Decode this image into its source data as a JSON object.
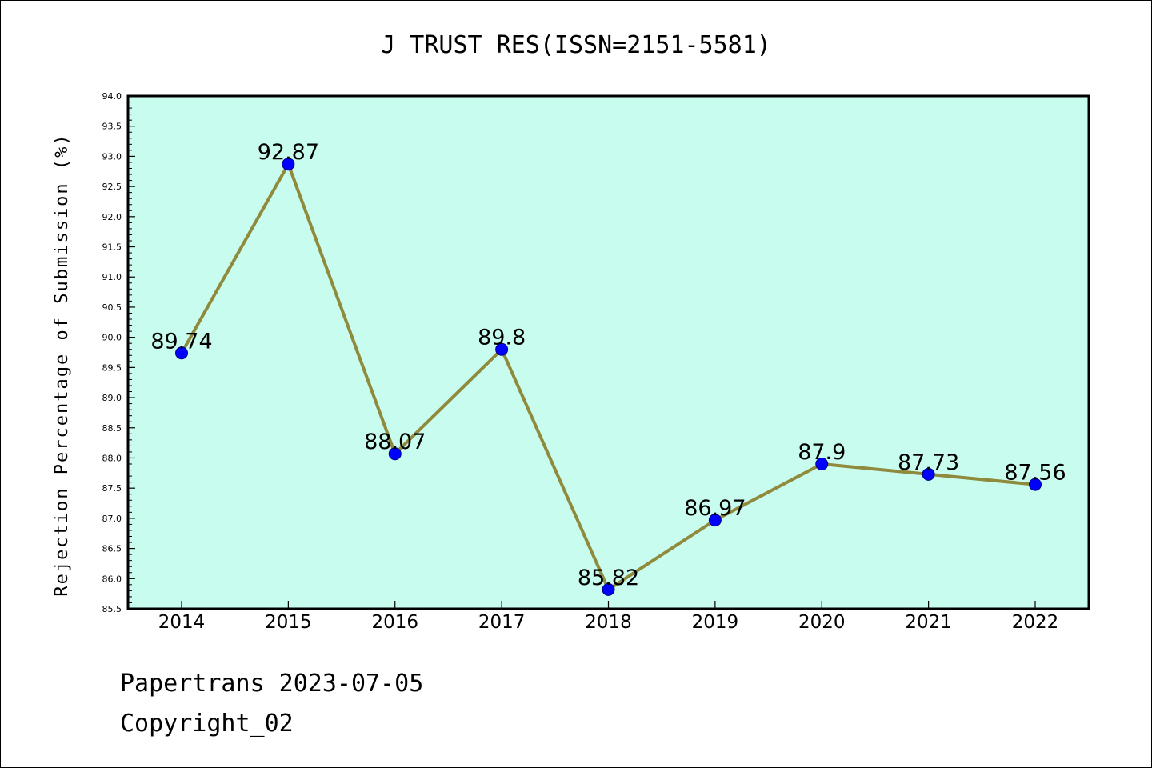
{
  "chart_data": {
    "type": "line",
    "title": "J TRUST RES(ISSN=2151-5581)",
    "xlabel": "",
    "ylabel": "Rejection Percentage of Submission (%)",
    "categories": [
      "2014",
      "2015",
      "2016",
      "2017",
      "2018",
      "2019",
      "2020",
      "2021",
      "2022"
    ],
    "values": [
      89.74,
      92.87,
      88.07,
      89.8,
      85.82,
      86.97,
      87.9,
      87.73,
      87.56
    ],
    "data_labels": [
      "89.74",
      "92.87",
      "88.07",
      "89.8",
      "85.82",
      "86.97",
      "87.9",
      "87.73",
      "87.56"
    ],
    "ylim": [
      85.5,
      94.0
    ],
    "yticks": [
      "85.5",
      "86.0",
      "86.5",
      "87.0",
      "87.5",
      "88.0",
      "88.5",
      "89.0",
      "89.5",
      "90.0",
      "90.5",
      "91.0",
      "91.5",
      "92.0",
      "92.5",
      "93.0",
      "93.5",
      "94.0"
    ],
    "grid": false,
    "colors": {
      "plot_background": "#c8fcee",
      "line": "#8f8a3c",
      "marker": "#0000ff"
    }
  },
  "footer": {
    "line1": "Papertrans 2023-07-05",
    "line2": "Copyright_02"
  }
}
